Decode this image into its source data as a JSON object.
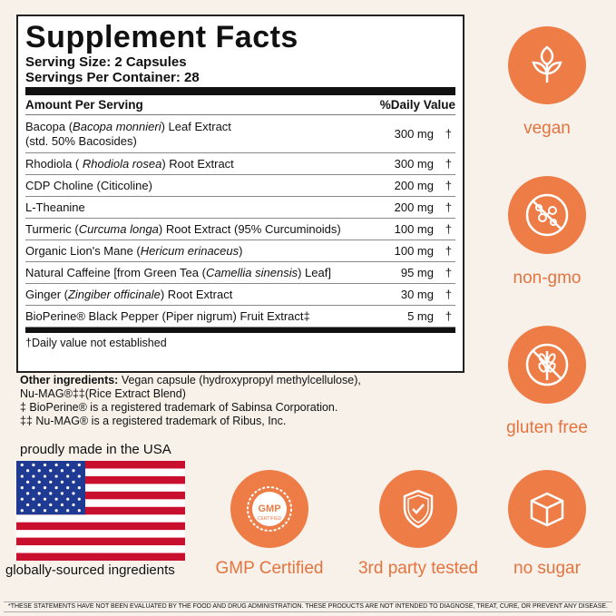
{
  "facts": {
    "title": "Supplement Facts",
    "serving_size": "Serving Size: 2 Capsules",
    "servings_per_container": "Servings Per Container: 28",
    "header_amount": "Amount Per Serving",
    "header_dv": "%Daily Value",
    "ingredients": [
      {
        "pre": "Bacopa (",
        "italic": "Bacopa monnieri",
        "post": ") Leaf Extract",
        "line2": "(std. 50% Bacosides)",
        "amount": "300 mg",
        "dv": "†"
      },
      {
        "pre": "Rhodiola ( ",
        "italic": "Rhodiola rosea",
        "post": ") Root Extract",
        "amount": "300 mg",
        "dv": "†"
      },
      {
        "pre": "CDP Choline (Citicoline)",
        "amount": "200 mg",
        "dv": "†"
      },
      {
        "pre": "L-Theanine",
        "amount": "200 mg",
        "dv": "†"
      },
      {
        "pre": "Turmeric (",
        "italic": "Curcuma longa",
        "post": ") Root Extract (95% Curcuminoids)",
        "amount": "100 mg",
        "dv": "†"
      },
      {
        "pre": "Organic Lion's Mane (",
        "italic": "Hericum erinaceus",
        "post": ")",
        "amount": "100 mg",
        "dv": "†"
      },
      {
        "pre": "Natural Caffeine [from Green Tea (",
        "italic": "Camellia sinensis",
        "post": ") Leaf]",
        "amount": "95 mg",
        "dv": "†"
      },
      {
        "pre": "Ginger (",
        "italic": "Zingiber officinale",
        "post": ") Root Extract",
        "amount": "30 mg",
        "dv": "†"
      },
      {
        "pre": "BioPerine® Black Pepper (Piper nigrum) Fruit Extract‡",
        "amount": "5 mg",
        "dv": "†"
      }
    ],
    "dv_note": "†Daily value not established"
  },
  "other": {
    "label": "Other ingredients:",
    "text": " Vegan capsule (hydroxypropyl methylcellulose),",
    "line2": "Nu-MAG®‡‡(Rice Extract Blend)",
    "tm1": "‡ BioPerine® is a registered trademark of Sabinsa Corporation.",
    "tm2": "‡‡ Nu-MAG® is a registered trademark of Ribus, Inc."
  },
  "badges": {
    "vegan": "vegan",
    "non_gmo": "non-gmo",
    "gluten_free": "gluten free",
    "gmp": "GMP Certified",
    "gmp_seal": "GMP",
    "gmp_seal_sub": "CERTIFIED",
    "third_party": "3rd party tested",
    "no_sugar": "no sugar"
  },
  "usa": {
    "top": "proudly made in the USA",
    "bottom": "globally-sourced ingredients"
  },
  "disclaimer": "*THESE STATEMENTS HAVE NOT BEEN EVALUATED BY THE FOOD AND DRUG ADMINISTRATION. THESE PRODUCTS ARE NOT INTENDED TO DIAGNOSE, TREAT, CURE, OR PREVENT ANY DISEASE.",
  "colors": {
    "accent": "#ee7c46",
    "label": "#e5733e",
    "flag_red": "#c8102e",
    "flag_blue": "#1f3a93"
  }
}
